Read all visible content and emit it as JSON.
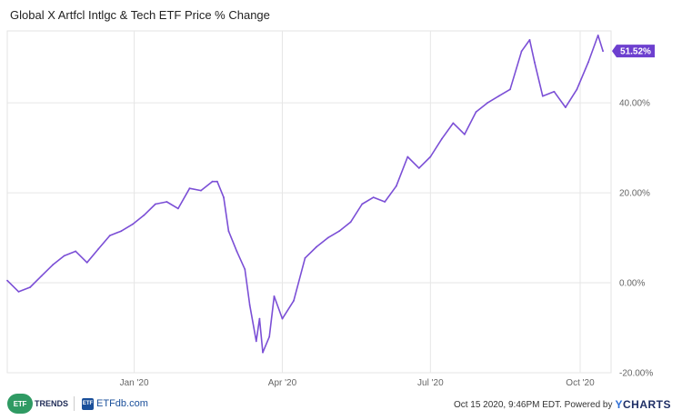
{
  "chart_data": {
    "type": "line",
    "title": "Global X Artfcl Intlgc & Tech ETF Price % Change",
    "xlabel": "",
    "ylabel": "",
    "ylim": [
      -20,
      56
    ],
    "x_ticks": [
      "Jan '20",
      "Apr '20",
      "Jul '20",
      "Oct '20"
    ],
    "y_ticks": [
      "-20.00%",
      "0.00%",
      "20.00%",
      "40.00%"
    ],
    "grid": true,
    "last_value_label": "51.52%",
    "line_color": "#7b4fd6",
    "x": [
      "2019-10-15",
      "2019-10-22",
      "2019-10-29",
      "2019-11-05",
      "2019-11-12",
      "2019-11-19",
      "2019-11-26",
      "2019-12-03",
      "2019-12-10",
      "2019-12-17",
      "2019-12-24",
      "2019-12-31",
      "2020-01-07",
      "2020-01-14",
      "2020-01-21",
      "2020-01-28",
      "2020-02-04",
      "2020-02-11",
      "2020-02-18",
      "2020-02-21",
      "2020-02-25",
      "2020-02-28",
      "2020-03-04",
      "2020-03-09",
      "2020-03-12",
      "2020-03-16",
      "2020-03-18",
      "2020-03-20",
      "2020-03-24",
      "2020-03-27",
      "2020-04-01",
      "2020-04-08",
      "2020-04-15",
      "2020-04-22",
      "2020-04-29",
      "2020-05-06",
      "2020-05-13",
      "2020-05-20",
      "2020-05-27",
      "2020-06-03",
      "2020-06-10",
      "2020-06-17",
      "2020-06-24",
      "2020-07-01",
      "2020-07-08",
      "2020-07-15",
      "2020-07-22",
      "2020-07-29",
      "2020-08-05",
      "2020-08-12",
      "2020-08-19",
      "2020-08-26",
      "2020-08-31",
      "2020-09-03",
      "2020-09-08",
      "2020-09-15",
      "2020-09-22",
      "2020-09-29",
      "2020-10-06",
      "2020-10-12",
      "2020-10-15"
    ],
    "series": [
      {
        "values": [
          0.5,
          -2.0,
          -1.0,
          1.5,
          4.0,
          6.0,
          7.0,
          4.5,
          7.5,
          10.5,
          11.5,
          13.0,
          15.0,
          17.5,
          18.0,
          16.5,
          21.0,
          20.5,
          22.5,
          22.5,
          19.0,
          11.5,
          7.0,
          3.0,
          -5.0,
          -13.0,
          -8.0,
          -15.5,
          -12.0,
          -3.0,
          -8.0,
          -4.0,
          5.5,
          8.0,
          10.0,
          11.5,
          13.5,
          17.5,
          19.0,
          18.0,
          21.5,
          28.0,
          25.5,
          28.0,
          32.0,
          35.5,
          33.0,
          38.0,
          40.0,
          41.5,
          43.0,
          51.5,
          54.0,
          49.0,
          41.5,
          42.5,
          39.0,
          43.0,
          49.0,
          55.0,
          51.52
        ]
      }
    ]
  },
  "footer": {
    "etftrends_logo_text": "ETF",
    "etftrends_text": "TRENDS",
    "etfdb_logo_text": "ETF",
    "etfdb_text": "ETFdb.com",
    "timestamp": "Oct 15 2020, 9:46PM EDT. Powered by",
    "ycharts_y": "Y",
    "ycharts_rest": "CHARTS"
  }
}
